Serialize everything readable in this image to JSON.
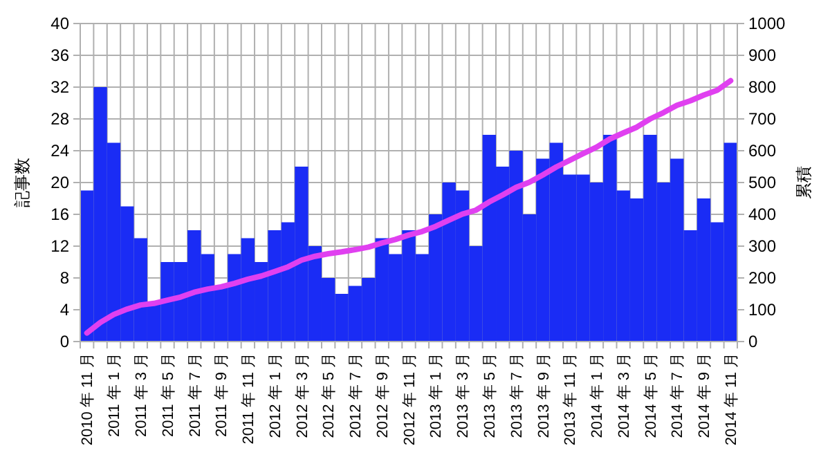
{
  "chart_data": {
    "type": "bar",
    "ylabel": "記事数",
    "y2label": "累積",
    "categories": [
      "2010 年 11 月",
      null,
      "2011 年 1 月",
      null,
      "2011 年 3 月",
      null,
      "2011 年 5 月",
      null,
      "2011 年 7 月",
      null,
      "2011 年 9 月",
      null,
      "2011 年 11 月",
      null,
      "2012 年 1 月",
      null,
      "2012 年 3 月",
      null,
      "2012 年 5 月",
      null,
      "2012 年 7 月",
      null,
      "2012 年 9 月",
      null,
      "2012 年 11 月",
      null,
      "2013 年 1 月",
      null,
      "2013 年 3 月",
      null,
      "2013 年 5 月",
      null,
      "2013 年 7 月",
      null,
      "2013 年 9 月",
      null,
      "2013 年 11 月",
      null,
      "2014 年 1 月",
      null,
      "2014 年 3 月",
      null,
      "2014 年 5 月",
      null,
      "2014 年 7 月",
      null,
      "2014 年 9 月",
      null,
      "2014 年 11 月"
    ],
    "series": [
      {
        "color": "#1a2cf5",
        "values": [
          19,
          32,
          25,
          17,
          13,
          5,
          10,
          10,
          14,
          11,
          7,
          11,
          13,
          10,
          14,
          15,
          22,
          12,
          8,
          6,
          7,
          8,
          13,
          11,
          14,
          11,
          16,
          20,
          19,
          12,
          26,
          22,
          24,
          16,
          23,
          25,
          21,
          21,
          20,
          26,
          19,
          18,
          26,
          20,
          23,
          14,
          18,
          15,
          25
        ]
      },
      {
        "type": "line",
        "axis": "y2",
        "color": "#e040f0",
        "values": [
          27,
          60,
          85,
          102,
          115,
          120,
          130,
          140,
          155,
          165,
          172,
          183,
          196,
          206,
          220,
          235,
          256,
          268,
          276,
          282,
          289,
          297,
          310,
          321,
          335,
          346,
          362,
          382,
          401,
          413,
          439,
          461,
          485,
          501,
          524,
          549,
          570,
          591,
          611,
          637,
          656,
          674,
          700,
          720,
          743,
          757,
          775,
          790,
          820
        ]
      }
    ],
    "ylim": [
      0,
      40
    ],
    "yticks": [
      0,
      4,
      8,
      12,
      16,
      20,
      24,
      28,
      32,
      36,
      40
    ],
    "y2lim": [
      0,
      1000
    ],
    "y2ticks": [
      0,
      100,
      200,
      300,
      400,
      500,
      600,
      700,
      800,
      900,
      1000
    ],
    "grid": true,
    "line_style": "solid"
  }
}
